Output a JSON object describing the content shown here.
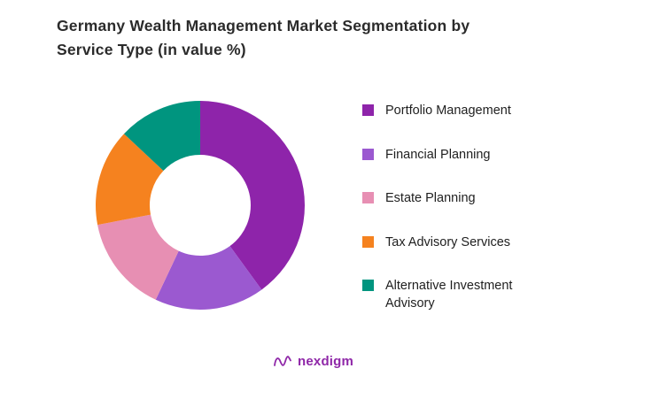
{
  "title_lines": [
    "Germany Wealth Management Market Segmentation by",
    "Service Type (in value %)"
  ],
  "chart_data": {
    "type": "pie",
    "subtype": "donut",
    "title": "Germany Wealth Management Market Segmentation by Service Type (in value %)",
    "categories": [
      "Portfolio Management",
      "Financial Planning",
      "Estate Planning",
      "Tax Advisory Services",
      "Alternative Investment Advisory"
    ],
    "values": [
      40,
      17,
      15,
      15,
      13
    ],
    "colors": [
      "#8E24AA",
      "#9B59D0",
      "#E78FB3",
      "#F5821F",
      "#00957F"
    ],
    "units": "value %",
    "legend_position": "right",
    "start_angle_deg": -90,
    "direction": "clockwise",
    "inner_radius_ratio": 0.48
  },
  "legend": {
    "items": [
      {
        "label": "Portfolio Management"
      },
      {
        "label": "Financial Planning"
      },
      {
        "label": "Estate Planning"
      },
      {
        "label": "Tax Advisory Services"
      },
      {
        "label": "Alternative Investment Advisory"
      }
    ]
  },
  "footer": {
    "brand": "nexdigm"
  }
}
